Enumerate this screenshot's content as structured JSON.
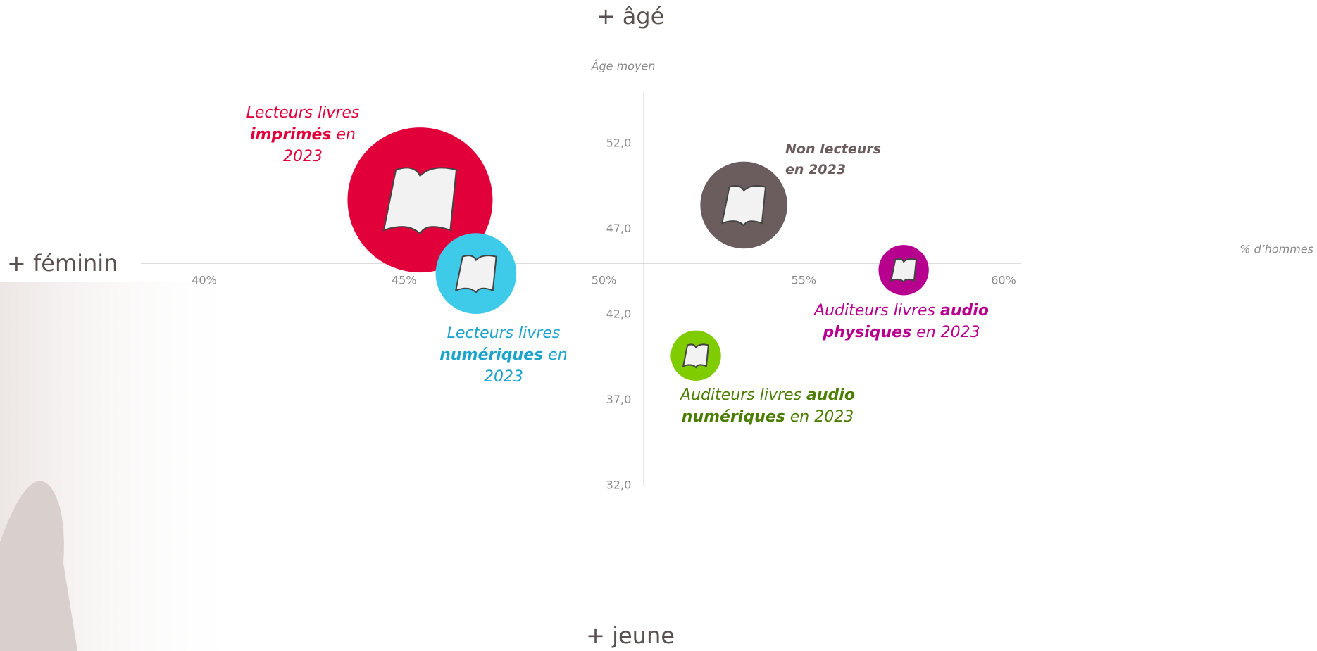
{
  "chart_data": {
    "type": "bubble",
    "top_label": "+ âgé",
    "bottom_label": "+ jeune",
    "left_label": "+ féminin",
    "x_label": "% d’hommes",
    "y_label": "Âge moyen",
    "xlim": [
      40,
      60
    ],
    "xticks": [
      {
        "value": 40,
        "label": "40%"
      },
      {
        "value": 45,
        "label": "45%"
      },
      {
        "value": 50,
        "label": "50%"
      },
      {
        "value": 55,
        "label": "55%"
      },
      {
        "value": 60,
        "label": "60%"
      }
    ],
    "ylim": [
      32,
      55
    ],
    "yticks": [
      {
        "value": 32,
        "label": "32,0"
      },
      {
        "value": 37,
        "label": "37,0"
      },
      {
        "value": 42,
        "label": "42,0"
      },
      {
        "value": 47,
        "label": "47,0"
      },
      {
        "value": 52,
        "label": "52,0"
      }
    ],
    "x_axis_crosses": 45,
    "y_axis_crosses": 51,
    "series": [
      {
        "color": "#e2003b",
        "label_color": "#e2003b",
        "x": 45.4,
        "y": 48.7,
        "size": 100,
        "label": [
          {
            "text": "Lecteurs livres "
          },
          {
            "text": "imprimés",
            "bold": true
          },
          {
            "text": " en 2023"
          }
        ]
      },
      {
        "color": "#3ecbea",
        "label_color": "#1aa3cc",
        "x": 46.8,
        "y": 44.4,
        "size": 31,
        "label": [
          {
            "text": "Lecteurs livres "
          },
          {
            "text": "numériques",
            "bold": true
          },
          {
            "text": " en 2023"
          }
        ]
      },
      {
        "color": "#6b5d5d",
        "label_color": "#6b5d5d",
        "x": 53.5,
        "y": 48.4,
        "size": 36,
        "label": [
          {
            "text": "Non lecteurs en 2023",
            "bold": true
          }
        ]
      },
      {
        "color": "#b8008f",
        "label_color": "#b8008f",
        "x": 57.5,
        "y": 44.6,
        "size": 12,
        "label": [
          {
            "text": "Auditeurs livres "
          },
          {
            "text": "audio physiques",
            "bold": true
          },
          {
            "text": " en 2023"
          }
        ]
      },
      {
        "color": "#7fcc00",
        "label_color": "#4b7d00",
        "x": 52.3,
        "y": 39.6,
        "size": 12,
        "label": [
          {
            "text": "Auditeurs livres "
          },
          {
            "text": "audio numériques",
            "bold": true
          },
          {
            "text": " en 2023"
          }
        ]
      }
    ]
  }
}
